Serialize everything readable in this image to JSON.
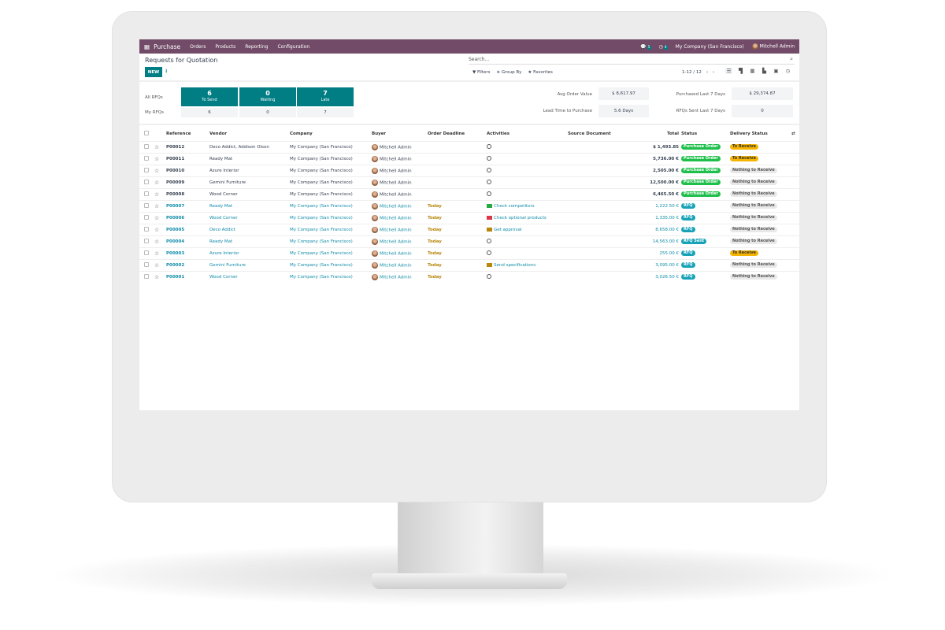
{
  "nav": {
    "app": "Purchase",
    "menu": [
      "Orders",
      "Products",
      "Reporting",
      "Configuration"
    ],
    "messages_count": "5",
    "activities_count": "4",
    "company": "My Company (San Francisco)",
    "user": "Mitchell Admin"
  },
  "page": {
    "title": "Requests for Quotation",
    "new_label": "NEW"
  },
  "search": {
    "placeholder": "Search...",
    "filters": "Filters",
    "group_by": "Group By",
    "favorites": "Favorites"
  },
  "pager": {
    "text": "1-12 / 12"
  },
  "views": [
    "list",
    "kanban",
    "pivot",
    "graph",
    "calendar",
    "activity"
  ],
  "dashboard": {
    "all_rfqs": "All RFQs",
    "my_rfqs": "My RFQs",
    "tiles": [
      {
        "value": "6",
        "label": "To Send",
        "mine": "6"
      },
      {
        "value": "0",
        "label": "Waiting",
        "mine": "0"
      },
      {
        "value": "7",
        "label": "Late",
        "mine": "7"
      }
    ],
    "kpis": [
      {
        "label": "Avg Order Value",
        "value": "$ 8,617.97"
      },
      {
        "label": "Lead Time to Purchase",
        "value": "5.6 Days"
      },
      {
        "label": "Purchased Last 7 Days",
        "value": "$ 29,374.87"
      },
      {
        "label": "RFQs Sent Last 7 Days",
        "value": "0"
      }
    ]
  },
  "table": {
    "columns": [
      "Reference",
      "Vendor",
      "Company",
      "Buyer",
      "Order Deadline",
      "Activities",
      "Source Document",
      "Total",
      "Status",
      "Delivery Status"
    ],
    "rows": [
      {
        "ref": "P00012",
        "vendor": "Deco Addict, Addison Olson",
        "company": "My Company (San Francisco)",
        "buyer": "Mitchell Admin",
        "deadline": "",
        "activity": "",
        "total": "$ 1,493.85",
        "status": "Purchase Order",
        "delivery": "To Receive"
      },
      {
        "ref": "P00011",
        "vendor": "Ready Mat",
        "company": "My Company (San Francisco)",
        "buyer": "Mitchell Admin",
        "deadline": "",
        "activity": "",
        "total": "5,736.00 €",
        "status": "Purchase Order",
        "delivery": "To Receive"
      },
      {
        "ref": "P00010",
        "vendor": "Azure Interior",
        "company": "My Company (San Francisco)",
        "buyer": "Mitchell Admin",
        "deadline": "",
        "activity": "",
        "total": "2,505.00 €",
        "status": "Purchase Order",
        "delivery": "Nothing to Receive"
      },
      {
        "ref": "P00009",
        "vendor": "Gemini Furniture",
        "company": "My Company (San Francisco)",
        "buyer": "Mitchell Admin",
        "deadline": "",
        "activity": "",
        "total": "12,500.00 €",
        "status": "Purchase Order",
        "delivery": "Nothing to Receive"
      },
      {
        "ref": "P00008",
        "vendor": "Wood Corner",
        "company": "My Company (San Francisco)",
        "buyer": "Mitchell Admin",
        "deadline": "",
        "activity": "",
        "total": "6,465.50 €",
        "status": "Purchase Order",
        "delivery": "Nothing to Receive"
      },
      {
        "ref": "P00007",
        "vendor": "Ready Mat",
        "company": "My Company (San Francisco)",
        "buyer": "Mitchell Admin",
        "deadline": "Today",
        "activity": "Check competitors",
        "activity_color": "#28a745",
        "total": "1,222.50 €",
        "status": "RFQ",
        "delivery": "Nothing to Receive"
      },
      {
        "ref": "P00006",
        "vendor": "Wood Corner",
        "company": "My Company (San Francisco)",
        "buyer": "Mitchell Admin",
        "deadline": "Today",
        "activity": "Check optional products",
        "activity_color": "#dc3545",
        "total": "1,335.00 €",
        "status": "RFQ",
        "delivery": "Nothing to Receive"
      },
      {
        "ref": "P00005",
        "vendor": "Deco Addict",
        "company": "My Company (San Francisco)",
        "buyer": "Mitchell Admin",
        "deadline": "Today",
        "activity": "Get approval",
        "activity_color": "#b7860b",
        "total": "8,658.00 €",
        "status": "RFQ",
        "delivery": "Nothing to Receive"
      },
      {
        "ref": "P00004",
        "vendor": "Ready Mat",
        "company": "My Company (San Francisco)",
        "buyer": "Mitchell Admin",
        "deadline": "Today",
        "activity": "",
        "total": "14,563.00 €",
        "status": "RFQ Sent",
        "delivery": "Nothing to Receive"
      },
      {
        "ref": "P00003",
        "vendor": "Azure Interior",
        "company": "My Company (San Francisco)",
        "buyer": "Mitchell Admin",
        "deadline": "Today",
        "activity": "",
        "total": "255.00 €",
        "status": "RFQ",
        "delivery": "To Receive"
      },
      {
        "ref": "P00002",
        "vendor": "Gemini Furniture",
        "company": "My Company (San Francisco)",
        "buyer": "Mitchell Admin",
        "deadline": "Today",
        "activity": "Send specifications",
        "activity_color": "#b7860b",
        "total": "3,095.00 €",
        "status": "RFQ",
        "delivery": "Nothing to Receive"
      },
      {
        "ref": "P00001",
        "vendor": "Wood Corner",
        "company": "My Company (San Francisco)",
        "buyer": "Mitchell Admin",
        "deadline": "Today",
        "activity": "",
        "total": "3,026.50 €",
        "status": "RFQ",
        "delivery": "Nothing to Receive"
      }
    ]
  },
  "colors": {
    "nav": "#714b67",
    "primary": "#017e84",
    "purchase_order": "#1fbf4c",
    "rfq": "#17a2b8",
    "to_receive": "#f5b400"
  }
}
